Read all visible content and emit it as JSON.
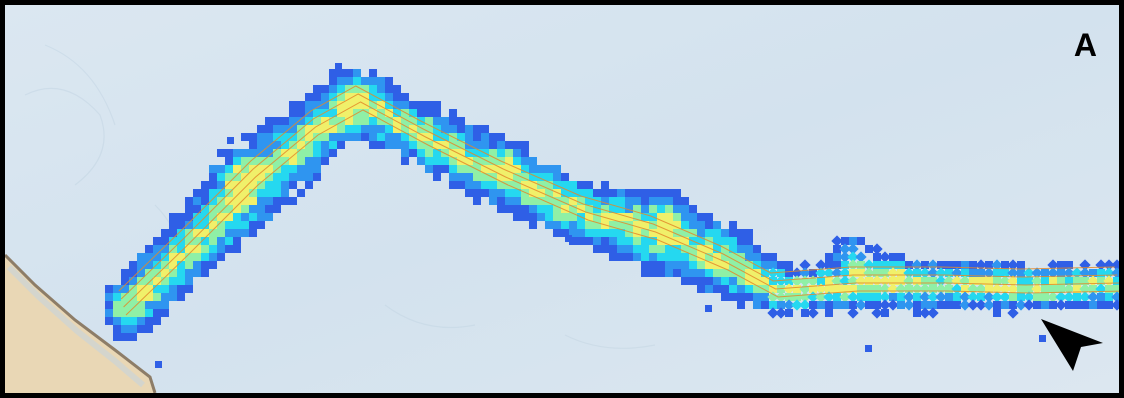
{
  "panel_label": "A",
  "colors": {
    "sea": "#d6e4ee",
    "land": "#e7d6b6",
    "coastline": "#8d7d68",
    "track": "#e2892a",
    "heat_low": "#2f5fe6",
    "heat_mid_low": "#2f95f0",
    "heat_mid": "#25d8f0",
    "heat_mid_high": "#8ff0a6",
    "heat_high": "#f0f06a",
    "arrow": "#000000"
  },
  "icons": {
    "north_arrow": "arrow-pointer-icon"
  }
}
